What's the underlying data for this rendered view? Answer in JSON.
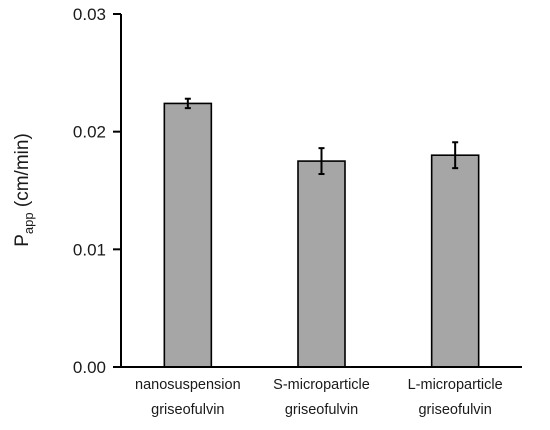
{
  "chart_data": {
    "type": "bar",
    "categories": [
      [
        "nanosuspension",
        "griseofulvin"
      ],
      [
        "S-microparticle",
        "griseofulvin"
      ],
      [
        "L-microparticle",
        "griseofulvin"
      ]
    ],
    "values": [
      0.0224,
      0.0175,
      0.018
    ],
    "errors": [
      0.0004,
      0.0011,
      0.0011
    ],
    "ylabel": {
      "main": "P",
      "sub": "app",
      "unit": " (cm/min)"
    },
    "ylim": [
      0,
      0.03
    ],
    "yticks": [
      "0.00",
      "0.01",
      "0.02",
      "0.03"
    ],
    "bar_color": "#a6a6a6",
    "edge_color": "#000000",
    "grid": false
  }
}
